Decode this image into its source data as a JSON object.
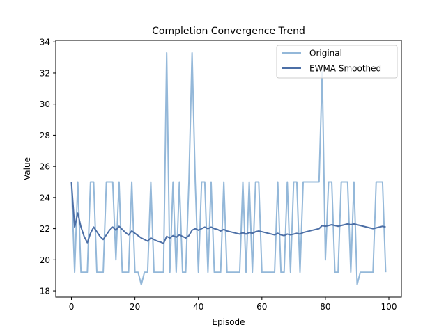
{
  "chart_data": {
    "type": "line",
    "title": "Completion Convergence Trend",
    "xlabel": "Episode",
    "ylabel": "Value",
    "xlim": [
      -4.95,
      103.95
    ],
    "ylim": [
      17.6,
      34.1
    ],
    "xticks": [
      0,
      20,
      40,
      60,
      80,
      100
    ],
    "yticks": [
      18,
      20,
      22,
      24,
      26,
      28,
      30,
      32,
      34
    ],
    "grid": false,
    "legend_position": "upper-right",
    "x": [
      0,
      1,
      2,
      3,
      4,
      5,
      6,
      7,
      8,
      9,
      10,
      11,
      12,
      13,
      14,
      15,
      16,
      17,
      18,
      19,
      20,
      21,
      22,
      23,
      24,
      25,
      26,
      27,
      28,
      29,
      30,
      31,
      32,
      33,
      34,
      35,
      36,
      37,
      38,
      39,
      40,
      41,
      42,
      43,
      44,
      45,
      46,
      47,
      48,
      49,
      50,
      51,
      52,
      53,
      54,
      55,
      56,
      57,
      58,
      59,
      60,
      61,
      62,
      63,
      64,
      65,
      66,
      67,
      68,
      69,
      70,
      71,
      72,
      73,
      74,
      75,
      76,
      77,
      78,
      79,
      80,
      81,
      82,
      83,
      84,
      85,
      86,
      87,
      88,
      89,
      90,
      91,
      92,
      93,
      94,
      95,
      96,
      97,
      98,
      99
    ],
    "series": [
      {
        "name": "Original",
        "color": "#94b8d9",
        "values": [
          25.0,
          19.2,
          25.0,
          19.2,
          19.2,
          19.2,
          25.0,
          25.0,
          19.2,
          19.2,
          19.2,
          25.0,
          25.0,
          25.0,
          20.0,
          25.0,
          19.2,
          19.2,
          19.2,
          25.0,
          19.2,
          19.2,
          18.4,
          19.2,
          19.2,
          25.0,
          19.2,
          19.2,
          19.2,
          19.2,
          33.3,
          19.2,
          25.0,
          19.2,
          25.0,
          19.2,
          19.2,
          25.0,
          33.3,
          25.0,
          19.2,
          25.0,
          25.0,
          19.2,
          25.0,
          19.2,
          19.2,
          19.2,
          25.0,
          19.2,
          19.2,
          19.2,
          19.2,
          19.2,
          25.0,
          19.2,
          25.0,
          19.2,
          25.0,
          25.0,
          19.2,
          19.2,
          19.2,
          19.2,
          19.2,
          25.0,
          19.2,
          19.2,
          25.0,
          19.2,
          25.0,
          25.0,
          19.2,
          25.0,
          25.0,
          25.0,
          25.0,
          25.0,
          25.0,
          32.1,
          20.0,
          25.0,
          25.0,
          19.2,
          19.2,
          25.0,
          25.0,
          25.0,
          19.2,
          25.0,
          18.4,
          19.2,
          19.2,
          19.2,
          19.2,
          19.2,
          25.0,
          25.0,
          25.0,
          19.2
        ]
      },
      {
        "name": "EWMA Smoothed",
        "color": "#4c6fa6",
        "values": [
          25.0,
          22.1,
          23.0,
          22.1,
          21.5,
          21.1,
          21.7,
          22.1,
          21.8,
          21.5,
          21.3,
          21.6,
          21.9,
          22.1,
          21.9,
          22.15,
          21.95,
          21.75,
          21.6,
          21.85,
          21.7,
          21.55,
          21.4,
          21.3,
          21.2,
          21.4,
          21.3,
          21.2,
          21.15,
          21.05,
          21.5,
          21.4,
          21.55,
          21.45,
          21.6,
          21.5,
          21.4,
          21.55,
          21.9,
          22.0,
          21.9,
          22.0,
          22.1,
          22.0,
          22.1,
          22.0,
          21.95,
          21.85,
          21.95,
          21.85,
          21.8,
          21.75,
          21.7,
          21.65,
          21.75,
          21.65,
          21.75,
          21.7,
          21.8,
          21.85,
          21.8,
          21.75,
          21.7,
          21.65,
          21.6,
          21.7,
          21.6,
          21.55,
          21.65,
          21.6,
          21.65,
          21.7,
          21.65,
          21.75,
          21.8,
          21.85,
          21.9,
          21.95,
          22.0,
          22.2,
          22.15,
          22.2,
          22.25,
          22.2,
          22.15,
          22.2,
          22.25,
          22.3,
          22.25,
          22.3,
          22.25,
          22.2,
          22.15,
          22.1,
          22.05,
          22.0,
          22.05,
          22.1,
          22.15,
          22.1
        ]
      }
    ]
  }
}
